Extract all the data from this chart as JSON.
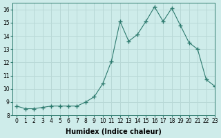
{
  "x": [
    0,
    1,
    2,
    3,
    4,
    5,
    6,
    7,
    8,
    9,
    10,
    11,
    12,
    13,
    14,
    15,
    16,
    17,
    18,
    19,
    20,
    21,
    22,
    23
  ],
  "y": [
    8.7,
    8.5,
    8.5,
    8.6,
    8.7,
    8.7,
    8.7,
    8.7,
    9.0,
    9.4,
    10.4,
    12.1,
    15.1,
    13.6,
    14.1,
    15.1,
    16.2,
    15.1,
    16.1,
    14.8,
    13.5,
    13.0,
    10.7,
    10.2
  ],
  "line_color": "#2d7a6e",
  "marker": "+",
  "marker_size": 4,
  "bg_color": "#ceecea",
  "grid_color": "#b8d8d6",
  "xlabel": "Humidex (Indice chaleur)",
  "ylim": [
    8,
    16.5
  ],
  "xlim": [
    -0.5,
    23
  ],
  "yticks": [
    8,
    9,
    10,
    11,
    12,
    13,
    14,
    15,
    16
  ],
  "xticks": [
    0,
    1,
    2,
    3,
    4,
    5,
    6,
    7,
    8,
    9,
    10,
    11,
    12,
    13,
    14,
    15,
    16,
    17,
    18,
    19,
    20,
    21,
    22,
    23
  ],
  "tick_fontsize": 5.5,
  "xlabel_fontsize": 7,
  "spine_color": "#2d7a6e"
}
